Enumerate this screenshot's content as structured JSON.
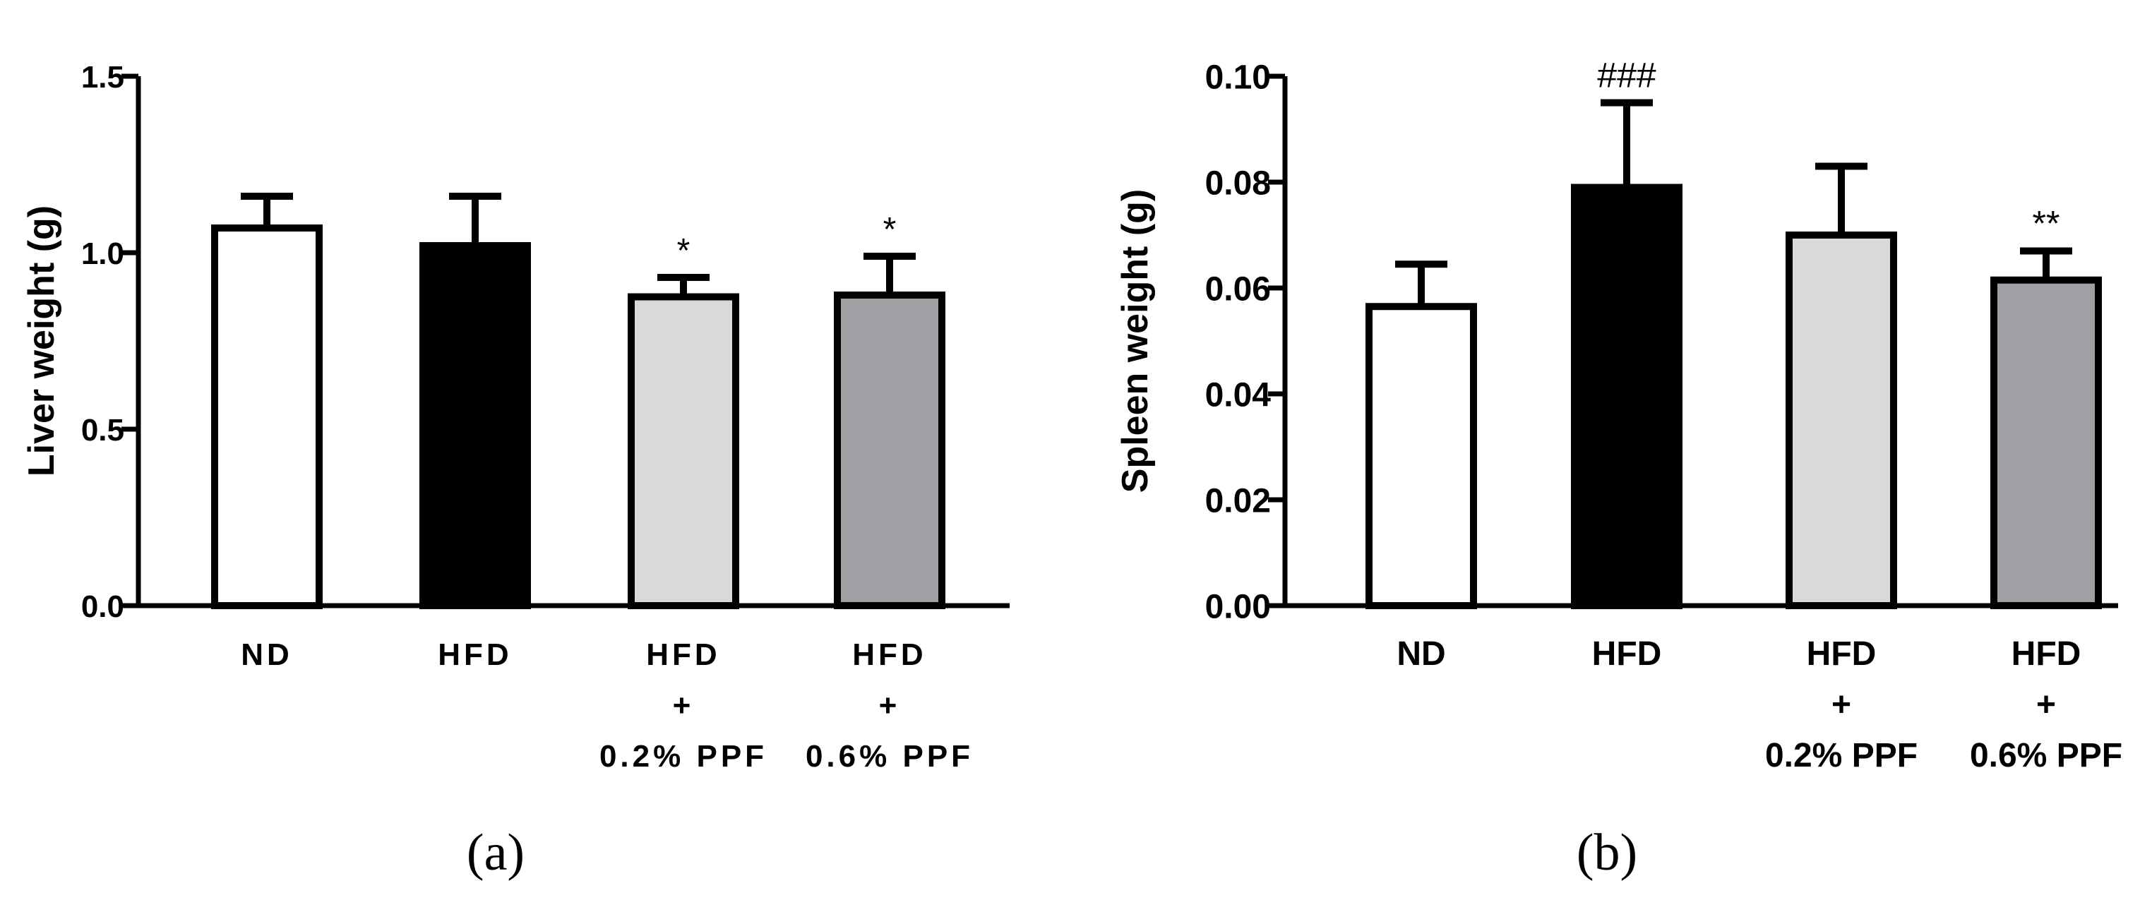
{
  "chart_data": [
    {
      "panel": "(a)",
      "type": "bar",
      "title": "",
      "xlabel": "",
      "ylabel": "Liver weight (g)",
      "ylim": [
        0,
        1.5
      ],
      "yticks": [
        "0.0",
        "0.5",
        "1.0",
        "1.5"
      ],
      "categories": [
        [
          "ND"
        ],
        [
          "HFD"
        ],
        [
          "HFD",
          "+",
          "0.2% PPF"
        ],
        [
          "HFD",
          "+",
          "0.6% PPF"
        ]
      ],
      "values": [
        1.07,
        1.02,
        0.875,
        0.88
      ],
      "errors": [
        0.09,
        0.14,
        0.055,
        0.11
      ],
      "fills": [
        "#ffffff",
        "#000000",
        "#d9d9d9",
        "#a0a0a4"
      ],
      "annotations": [
        "",
        "",
        "*",
        "*"
      ]
    },
    {
      "panel": "(b)",
      "type": "bar",
      "title": "",
      "xlabel": "",
      "ylabel": "Spleen weight (g)",
      "ylim": [
        0,
        0.1
      ],
      "yticks": [
        "0.00",
        "0.02",
        "0.04",
        "0.06",
        "0.08",
        "0.10"
      ],
      "categories": [
        [
          "ND"
        ],
        [
          "HFD"
        ],
        [
          "HFD",
          "+",
          "0.2% PPF"
        ],
        [
          "HFD",
          "+",
          "0.6% PPF"
        ]
      ],
      "values": [
        0.0565,
        0.079,
        0.07,
        0.0615
      ],
      "errors": [
        0.008,
        0.016,
        0.013,
        0.0055
      ],
      "fills": [
        "#ffffff",
        "#000000",
        "#d9d9d9",
        "#a0a0a4"
      ],
      "annotations": [
        "",
        "###",
        "",
        "**"
      ]
    }
  ]
}
